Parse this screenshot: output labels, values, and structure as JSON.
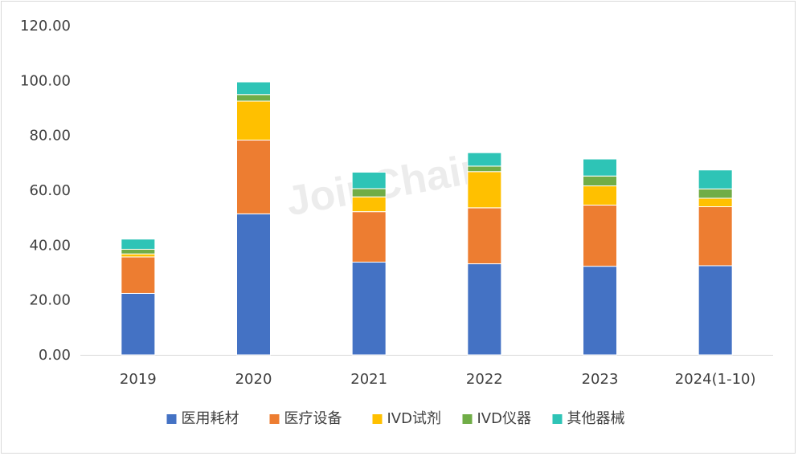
{
  "chart_data": {
    "type": "bar",
    "stacked": true,
    "title": "",
    "xlabel": "",
    "ylabel": "",
    "ylim": [
      0,
      120
    ],
    "ytick_values": [
      0,
      20,
      40,
      60,
      80,
      100,
      120
    ],
    "ytick_labels": [
      "0.00",
      "20.00",
      "40.00",
      "60.00",
      "80.00",
      "100.00",
      "120.00"
    ],
    "grid": false,
    "legend_position": "bottom",
    "categories": [
      "2019",
      "2020",
      "2021",
      "2022",
      "2023",
      "2024(1-10)"
    ],
    "series": [
      {
        "name": "医用耗材",
        "color": "#4472C4",
        "values": [
          22.4,
          51.4,
          33.8,
          33.2,
          32.3,
          32.5
        ]
      },
      {
        "name": "医疗设备",
        "color": "#ED7D31",
        "values": [
          13.3,
          26.9,
          18.4,
          20.4,
          22.3,
          21.5
        ]
      },
      {
        "name": "IVD试剂",
        "color": "#FFC000",
        "values": [
          1.1,
          14.2,
          5.4,
          13.2,
          7.0,
          3.1
        ]
      },
      {
        "name": "IVD仪器",
        "color": "#70AD47",
        "values": [
          1.7,
          2.4,
          3.0,
          2.0,
          3.6,
          3.4
        ]
      },
      {
        "name": "其他器械",
        "color": "#2EC4B6",
        "values": [
          3.7,
          4.6,
          6.0,
          4.9,
          6.2,
          6.9
        ]
      }
    ]
  },
  "watermark": "JoinChain"
}
